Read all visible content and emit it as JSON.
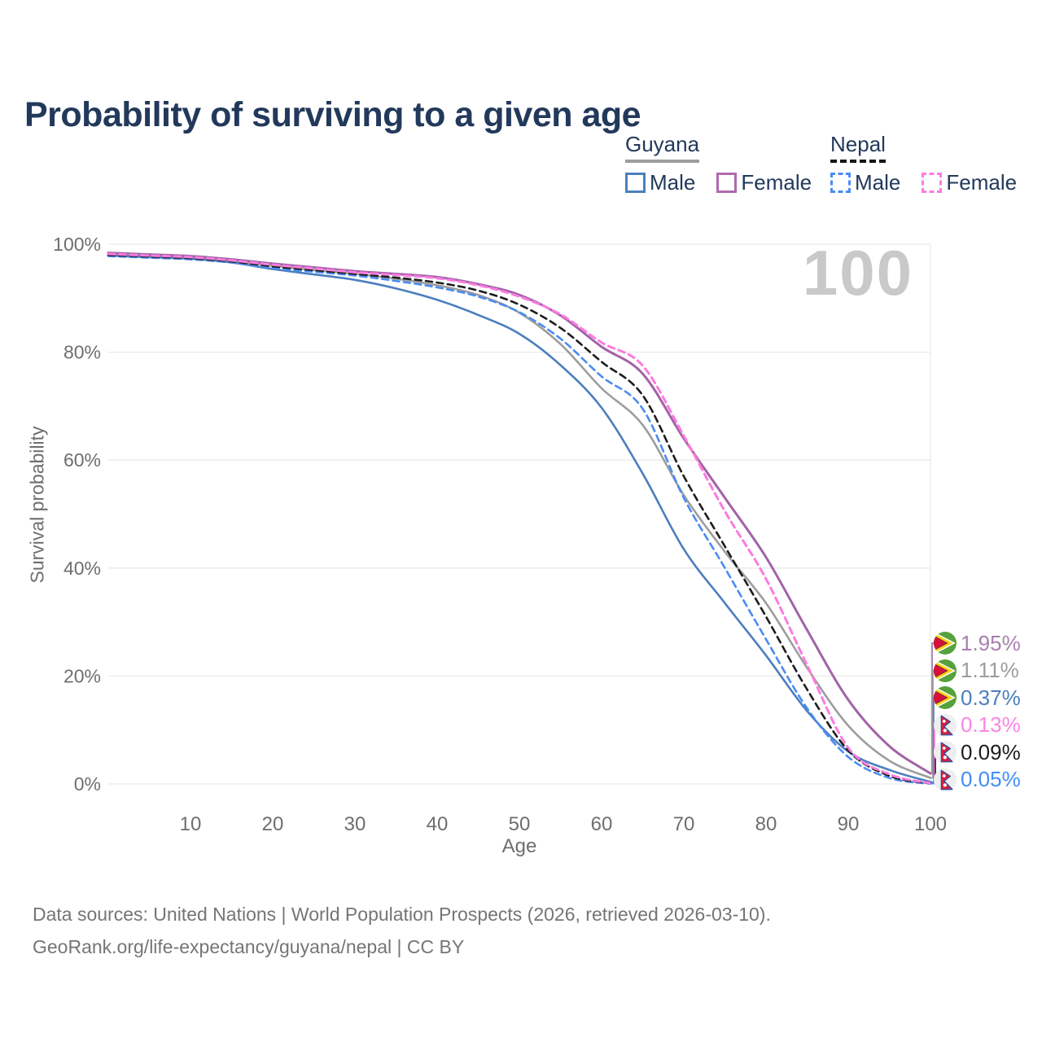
{
  "title": "Probability of surviving to a given age",
  "legend": {
    "groups": [
      {
        "name": "Guyana",
        "line": "solid",
        "items": [
          {
            "label": "Male",
            "color": "#4c7fbe",
            "line": "solid"
          },
          {
            "label": "Female",
            "color": "#b069b0",
            "line": "solid"
          }
        ]
      },
      {
        "name": "Nepal",
        "line": "dashed",
        "items": [
          {
            "label": "Male",
            "color": "#4a8cf2",
            "line": "dashed"
          },
          {
            "label": "Female",
            "color": "#fb7be0",
            "line": "dashed"
          }
        ]
      }
    ]
  },
  "chart_data": {
    "type": "line",
    "title": "Probability of surviving to a given age",
    "xlabel": "Age",
    "ylabel": "Survival probability",
    "watermark": "100",
    "grid": "horizontal",
    "legend_position": "top-right",
    "xlim": [
      0,
      100
    ],
    "ylim": [
      0,
      100
    ],
    "x_ticks": [
      10,
      20,
      30,
      40,
      50,
      60,
      70,
      80,
      90,
      100
    ],
    "y_ticks": [
      {
        "v": 0,
        "label": "0%"
      },
      {
        "v": 20,
        "label": "20%"
      },
      {
        "v": 40,
        "label": "40%"
      },
      {
        "v": 60,
        "label": "60%"
      },
      {
        "v": 80,
        "label": "80%"
      },
      {
        "v": 100,
        "label": "100%"
      }
    ],
    "x": [
      0,
      5,
      10,
      15,
      20,
      25,
      30,
      35,
      40,
      45,
      50,
      55,
      60,
      65,
      70,
      75,
      80,
      85,
      90,
      95,
      100
    ],
    "series": [
      {
        "name": "Guyana Female",
        "country": "Guyana",
        "sex": "Female",
        "flag": "guyana",
        "line": "solid",
        "color": "#a263a7",
        "label_color": "#a87fae",
        "end_label": "1.95%",
        "values": [
          98.4,
          98.1,
          97.8,
          97.2,
          96.4,
          95.7,
          95.0,
          94.5,
          93.9,
          92.6,
          90.6,
          86.8,
          81.0,
          76.0,
          64.0,
          53.0,
          42.0,
          28.5,
          15.6,
          7.0,
          1.95
        ]
      },
      {
        "name": "Guyana Both sexes",
        "country": "Guyana",
        "sex": "Both",
        "flag": "guyana",
        "line": "solid",
        "color": "#9d9d9d",
        "label_color": "#9d9d9d",
        "end_label": "1.11%",
        "values": [
          98.1,
          97.8,
          97.5,
          96.9,
          96.0,
          95.2,
          94.5,
          93.6,
          92.4,
          90.6,
          87.3,
          81.5,
          73.3,
          66.5,
          53.5,
          43.0,
          33.5,
          21.5,
          10.8,
          4.3,
          1.11
        ]
      },
      {
        "name": "Guyana Male",
        "country": "Guyana",
        "sex": "Male",
        "flag": "guyana",
        "line": "solid",
        "color": "#4c7fbe",
        "label_color": "#4c7fbe",
        "end_label": "0.37%",
        "values": [
          97.9,
          97.6,
          97.3,
          96.6,
          95.4,
          94.4,
          93.4,
          91.8,
          89.7,
          86.9,
          83.4,
          77.6,
          69.7,
          57.5,
          43.5,
          33.5,
          23.8,
          13.5,
          6.0,
          2.6,
          0.37
        ]
      },
      {
        "name": "Nepal Female",
        "country": "Nepal",
        "sex": "Female",
        "flag": "nepal",
        "line": "dashed",
        "color": "#fb7be0",
        "label_color": "#fb85e4",
        "end_label": "0.13%",
        "values": [
          98.2,
          97.9,
          97.6,
          97.0,
          96.2,
          95.5,
          94.8,
          94.3,
          93.7,
          92.4,
          90.3,
          87.0,
          81.8,
          77.5,
          64.5,
          50.5,
          38.0,
          22.0,
          6.7,
          1.8,
          0.13
        ]
      },
      {
        "name": "Nepal Both sexes",
        "country": "Nepal",
        "sex": "Both",
        "flag": "nepal",
        "line": "dashed",
        "color": "#1d1d1d",
        "label_color": "#1d1d1d",
        "end_label": "0.09%",
        "values": [
          98.0,
          97.7,
          97.4,
          96.8,
          95.9,
          95.2,
          94.5,
          93.8,
          92.9,
          91.4,
          88.8,
          84.5,
          78.2,
          72.0,
          57.0,
          44.0,
          31.0,
          17.5,
          6.2,
          1.5,
          0.09
        ]
      },
      {
        "name": "Nepal Male",
        "country": "Nepal",
        "sex": "Male",
        "flag": "nepal",
        "line": "dashed",
        "color": "#4a8cf2",
        "label_color": "#418ef4",
        "end_label": "0.05%",
        "values": [
          97.8,
          97.5,
          97.2,
          96.6,
          95.6,
          94.9,
          94.2,
          93.2,
          92.0,
          90.3,
          87.4,
          82.5,
          75.5,
          69.5,
          53.0,
          40.0,
          26.8,
          14.0,
          5.0,
          1.1,
          0.05
        ]
      }
    ],
    "colors": {
      "grid": "#eaeaea",
      "axis_text": "#6e6e6e",
      "title_text": "#22395b",
      "watermark": "#c9c9c9",
      "footer_text": "#757575"
    }
  },
  "footer": {
    "line1": "Data sources: United Nations | World Population Prospects (2026, retrieved 2026-03-10).",
    "line2": "GeoRank.org/life-expectancy/guyana/nepal | CC BY"
  }
}
